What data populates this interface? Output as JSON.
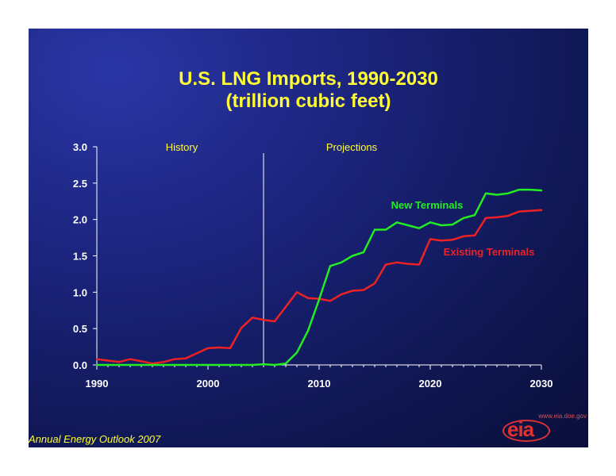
{
  "title_line1": "U.S. LNG Imports, 1990-2030",
  "title_line2": "(trillion cubic feet)",
  "footer": "Annual Energy Outlook 2007",
  "logo": {
    "url": "www.eia.doe.gov",
    "text": "eia"
  },
  "colors": {
    "background": "#1a2278",
    "title": "#ffff33",
    "new_terminals": "#22ee22",
    "existing_terminals": "#ee2222",
    "axes": "#ffffff"
  },
  "chart_data": {
    "type": "line",
    "title": "U.S. LNG Imports, 1990-2030",
    "subtitle": "(trillion cubic feet)",
    "xlim": [
      1990,
      2030
    ],
    "ylim": [
      0,
      3.0
    ],
    "xticks": [
      "1990",
      "2000",
      "2010",
      "2020",
      "2030"
    ],
    "yticks": [
      "0.0",
      "0.5",
      "1.0",
      "1.5",
      "2.0",
      "2.5",
      "3.0"
    ],
    "grid": false,
    "divider_year": 2005,
    "region_labels": [
      "History",
      "Projections"
    ],
    "series": [
      {
        "name": "Existing Terminals",
        "color": "#ee2222",
        "x": [
          1990,
          1991,
          1992,
          1993,
          1994,
          1995,
          1996,
          1997,
          1998,
          1999,
          2000,
          2001,
          2002,
          2003,
          2004,
          2005,
          2006,
          2007,
          2008,
          2009,
          2010,
          2011,
          2012,
          2013,
          2014,
          2015,
          2016,
          2017,
          2018,
          2019,
          2020,
          2021,
          2022,
          2023,
          2024,
          2025,
          2026,
          2027,
          2028,
          2029,
          2030
        ],
        "y": [
          0.08,
          0.06,
          0.04,
          0.08,
          0.05,
          0.02,
          0.04,
          0.08,
          0.09,
          0.16,
          0.23,
          0.24,
          0.23,
          0.51,
          0.65,
          0.62,
          0.6,
          0.8,
          1.0,
          0.92,
          0.91,
          0.88,
          0.97,
          1.02,
          1.03,
          1.12,
          1.38,
          1.41,
          1.39,
          1.38,
          1.73,
          1.71,
          1.72,
          1.77,
          1.78,
          2.02,
          2.03,
          2.05,
          2.11,
          2.12,
          2.13
        ]
      },
      {
        "name": "New Terminals",
        "color": "#22ee22",
        "x": [
          1990,
          1991,
          1992,
          1993,
          1994,
          1995,
          1996,
          1997,
          1998,
          1999,
          2000,
          2001,
          2002,
          2003,
          2004,
          2005,
          2006,
          2007,
          2008,
          2009,
          2010,
          2011,
          2012,
          2013,
          2014,
          2015,
          2016,
          2017,
          2018,
          2019,
          2020,
          2021,
          2022,
          2023,
          2024,
          2025,
          2026,
          2027,
          2028,
          2029,
          2030
        ],
        "y": [
          0,
          0,
          0,
          0,
          0,
          0,
          0,
          0,
          0,
          0,
          0,
          0,
          0,
          0,
          0,
          0.01,
          0,
          0.02,
          0.17,
          0.47,
          0.9,
          1.36,
          1.41,
          1.5,
          1.55,
          1.86,
          1.86,
          1.96,
          1.92,
          1.88,
          1.96,
          1.92,
          1.93,
          2.02,
          2.06,
          2.36,
          2.34,
          2.36,
          2.41,
          2.41,
          2.4
        ]
      }
    ]
  }
}
